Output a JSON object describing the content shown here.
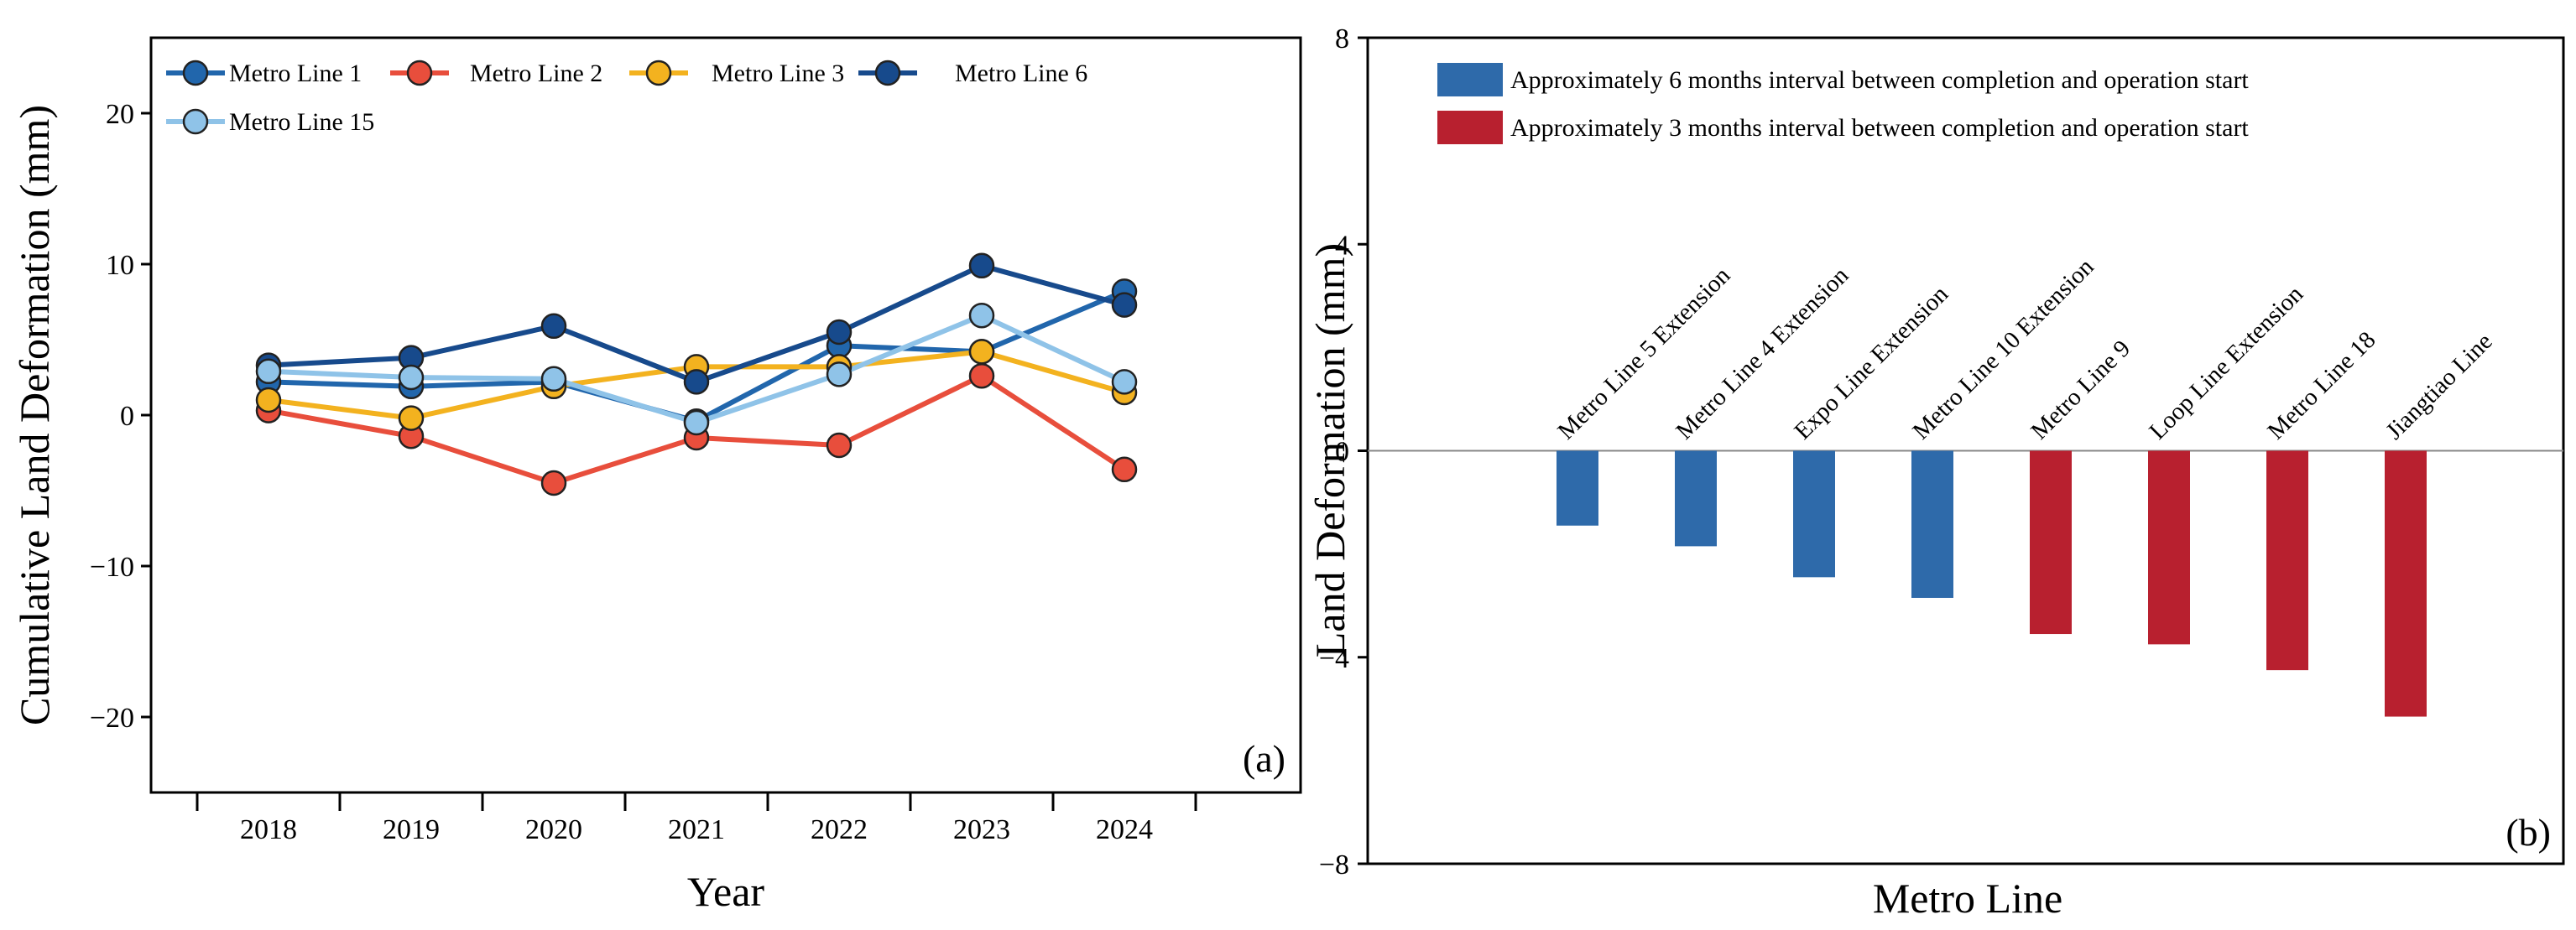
{
  "chart_data": [
    {
      "type": "line",
      "panel_label": "(a)",
      "xlabel": "Year",
      "ylabel": "Cumulative Land Deformation (mm)",
      "x": [
        "2018",
        "2019",
        "2020",
        "2021",
        "2022",
        "2023",
        "2024"
      ],
      "ylim": [
        -25,
        25
      ],
      "yticks": [
        -20,
        -10,
        0,
        10,
        20
      ],
      "ytick_labels": [
        "−20",
        "−10",
        "0",
        "10",
        "20"
      ],
      "legend_position": "top-left",
      "grid": false,
      "series": [
        {
          "name": "Metro Line 1",
          "color": "#2166ac",
          "values": [
            2.2,
            1.9,
            2.2,
            -0.4,
            4.6,
            4.2,
            8.2
          ]
        },
        {
          "name": "Metro Line 2",
          "color": "#e84e3c",
          "values": [
            0.3,
            -1.4,
            -4.5,
            -1.5,
            -2.0,
            2.6,
            -3.6
          ]
        },
        {
          "name": "Metro Line 3",
          "color": "#f3b21f",
          "values": [
            1.0,
            -0.2,
            1.9,
            3.2,
            3.2,
            4.2,
            1.5
          ]
        },
        {
          "name": "Metro Line 6",
          "color": "#174a8c",
          "values": [
            3.3,
            3.8,
            5.9,
            2.2,
            5.5,
            9.9,
            7.3
          ]
        },
        {
          "name": "Metro Line 15",
          "color": "#8fc3e8",
          "values": [
            2.9,
            2.5,
            2.4,
            -0.5,
            2.7,
            6.6,
            2.2
          ]
        }
      ]
    },
    {
      "type": "bar",
      "panel_label": "(b)",
      "xlabel": "Metro Line",
      "ylabel": "Land Deformation (mm)",
      "ylim": [
        -8,
        8
      ],
      "yticks": [
        -8,
        -4,
        0,
        4,
        8
      ],
      "ytick_labels": [
        "−8",
        "−4",
        "0",
        "4",
        "8"
      ],
      "legend_position": "top-left",
      "grid": false,
      "categories": [
        "Metro Line 5 Extension",
        "Metro Line 4 Extension",
        "Expo Line Extension",
        "Metro Line 10 Extension",
        "Metro Line 9",
        "Loop Line Extension",
        "Metro Line 18",
        "Jiangtiao Line"
      ],
      "values": [
        -1.45,
        -1.85,
        -2.45,
        -2.85,
        -3.55,
        -3.75,
        -4.25,
        -5.15
      ],
      "groups": [
        0,
        0,
        0,
        0,
        1,
        1,
        1,
        1
      ],
      "legend": [
        {
          "label": "Approximately 6 months interval between completion and operation start",
          "color": "#2e6aaa"
        },
        {
          "label": "Approximately 3 months interval between completion and operation start",
          "color": "#b8202f"
        }
      ]
    }
  ]
}
